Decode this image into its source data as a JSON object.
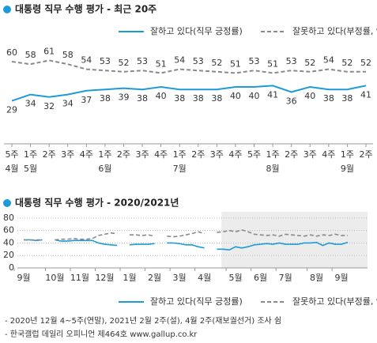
{
  "chart_data": [
    {
      "type": "line",
      "title": "대통령 직무 수행 평가 - 최근 20주",
      "categories": [
        "5주",
        "1주",
        "2주",
        "3주",
        "4주",
        "1주",
        "2주",
        "3주",
        "4주",
        "1주",
        "2주",
        "3주",
        "4주",
        "5주",
        "1주",
        "2주",
        "3주",
        "4주",
        "1주",
        "2주"
      ],
      "months": [
        "4월",
        "5월",
        null,
        null,
        null,
        "6월",
        null,
        null,
        null,
        "7월",
        null,
        null,
        null,
        null,
        "8월",
        null,
        null,
        null,
        "9월",
        null
      ],
      "series": [
        {
          "name": "잘하고 있다(직무 긍정률)",
          "color": "#1e9bd7",
          "dash": false,
          "values": [
            29,
            34,
            32,
            34,
            37,
            38,
            39,
            38,
            40,
            38,
            38,
            38,
            40,
            40,
            41,
            36,
            40,
            38,
            38,
            41
          ]
        },
        {
          "name": "잘못하고 있다(부정률, %)",
          "color": "#8a8a8a",
          "dash": true,
          "values": [
            60,
            58,
            61,
            58,
            54,
            53,
            52,
            53,
            51,
            54,
            53,
            52,
            51,
            53,
            51,
            53,
            52,
            54,
            52,
            52
          ]
        }
      ]
    },
    {
      "type": "line",
      "title": "대통령 직무 수행 평가 - 2020/2021년",
      "categories": [
        "9월",
        null,
        null,
        null,
        null,
        "10월",
        null,
        null,
        null,
        "11월",
        null,
        null,
        null,
        "12월",
        null,
        null,
        null,
        "1월",
        null,
        null,
        null,
        "2월",
        null,
        null,
        null,
        "3월",
        null,
        null,
        null,
        "4월",
        null,
        null,
        null,
        null,
        "5월",
        null,
        null,
        null,
        "6월",
        null,
        null,
        null,
        "7월",
        null,
        null,
        null,
        null,
        "8월",
        null,
        null,
        null,
        "9월",
        null
      ],
      "ylim": [
        0,
        90
      ],
      "yticks": [
        0,
        20,
        40,
        60,
        80
      ],
      "grid": true,
      "series": [
        {
          "name": "잘하고 있다(직무 긍정률)",
          "color": "#1e9bd7",
          "dash": false,
          "values": [
            45,
            45,
            44,
            45,
            null,
            45,
            43,
            43,
            44,
            44,
            44,
            44,
            40,
            38,
            37,
            36,
            null,
            37,
            38,
            38,
            38,
            39,
            null,
            40,
            40,
            39,
            37,
            37,
            34,
            32,
            null,
            30,
            30,
            29,
            34,
            32,
            34,
            37,
            38,
            39,
            38,
            40,
            38,
            38,
            38,
            40,
            40,
            41,
            36,
            40,
            38,
            38,
            41
          ]
        },
        {
          "name": "잘못하고 있다(부정률, %)",
          "color": "#8a8a8a",
          "dash": true,
          "values": [
            45,
            45,
            45,
            45,
            null,
            45,
            46,
            46,
            47,
            46,
            46,
            47,
            52,
            54,
            56,
            55,
            null,
            53,
            53,
            52,
            53,
            51,
            null,
            51,
            50,
            51,
            53,
            55,
            58,
            55,
            null,
            57,
            58,
            60,
            58,
            61,
            58,
            54,
            53,
            52,
            53,
            51,
            54,
            53,
            52,
            51,
            53,
            51,
            53,
            52,
            54,
            52,
            52
          ]
        }
      ],
      "notes": [
        "- 2020년 12월 4~5주(연말), 2021년 2월 2주(설), 4월 2주(재보궐선거) 조사 쉼",
        "- 한국갤럽 데일리 오피니언 제464호 www.gallup.co.kr"
      ]
    }
  ]
}
